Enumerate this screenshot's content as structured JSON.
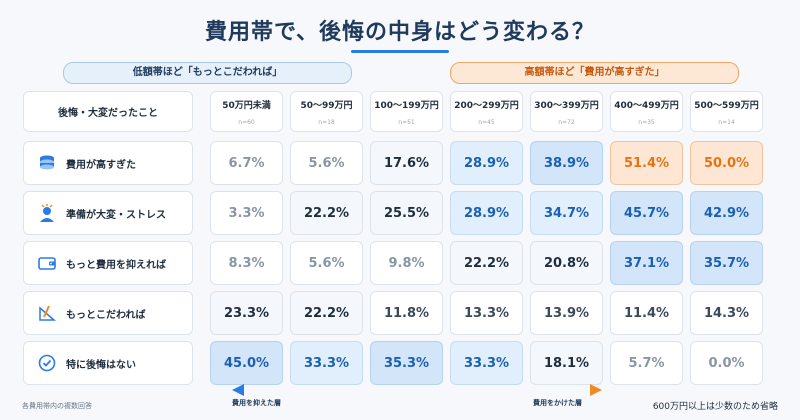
{
  "title": "費用帯で、後悔の中身はどう変わる？",
  "banners": {
    "low": "低額帯ほど「もっとこだわれば」",
    "high": "高額帯ほど「費用が高すぎた」"
  },
  "header_label": "後悔・大変だったこと",
  "footnotes": {
    "left": "各費用帯内の複数回答",
    "right": "600万円以上は少数のため省略",
    "arrow_left": "費用を抑えた層",
    "arrow_right": "費用をかけた層"
  },
  "colors": {
    "accent_blue": "#2a7be4",
    "highlight_orange": "#e5740f"
  },
  "row_icons": [
    "coins-icon",
    "stress-person-icon",
    "wallet-icon",
    "pen-ruler-icon",
    "check-circle-icon"
  ],
  "chart_data": {
    "type": "table",
    "unit": "%",
    "categories": [
      "50万円未満",
      "50〜99万円",
      "100〜199万円",
      "200〜299万円",
      "300〜399万円",
      "400〜499万円",
      "500〜599万円"
    ],
    "sample_sizes": [
      "n=60",
      "n=18",
      "n=51",
      "n=45",
      "n=72",
      "n=35",
      "n=14"
    ],
    "rows": [
      {
        "name": "費用が高すぎた",
        "values": [
          6.7,
          5.6,
          17.6,
          28.9,
          38.9,
          51.4,
          50.0
        ]
      },
      {
        "name": "準備が大変・ストレス",
        "values": [
          3.3,
          22.2,
          25.5,
          28.9,
          34.7,
          45.7,
          42.9
        ]
      },
      {
        "name": "もっと費用を抑えれば",
        "values": [
          8.3,
          5.6,
          9.8,
          22.2,
          20.8,
          37.1,
          35.7
        ]
      },
      {
        "name": "もっとこだわれば",
        "values": [
          23.3,
          22.2,
          11.8,
          13.3,
          13.9,
          11.4,
          14.3
        ]
      },
      {
        "name": "特に後悔はない",
        "values": [
          45.0,
          33.3,
          35.3,
          33.3,
          18.1,
          5.7,
          0.0
        ]
      }
    ],
    "display": [
      [
        "6.7%",
        "5.6%",
        "17.6%",
        "28.9%",
        "38.9%",
        "51.4%",
        "50.0%"
      ],
      [
        "3.3%",
        "22.2%",
        "25.5%",
        "28.9%",
        "34.7%",
        "45.7%",
        "42.9%"
      ],
      [
        "8.3%",
        "5.6%",
        "9.8%",
        "22.2%",
        "20.8%",
        "37.1%",
        "35.7%"
      ],
      [
        "23.3%",
        "22.2%",
        "11.8%",
        "13.3%",
        "13.9%",
        "11.4%",
        "14.3%"
      ],
      [
        "45.0%",
        "33.3%",
        "35.3%",
        "33.3%",
        "18.1%",
        "5.7%",
        "0.0%"
      ]
    ],
    "highlighted": [
      [
        0,
        5
      ],
      [
        0,
        6
      ]
    ]
  }
}
